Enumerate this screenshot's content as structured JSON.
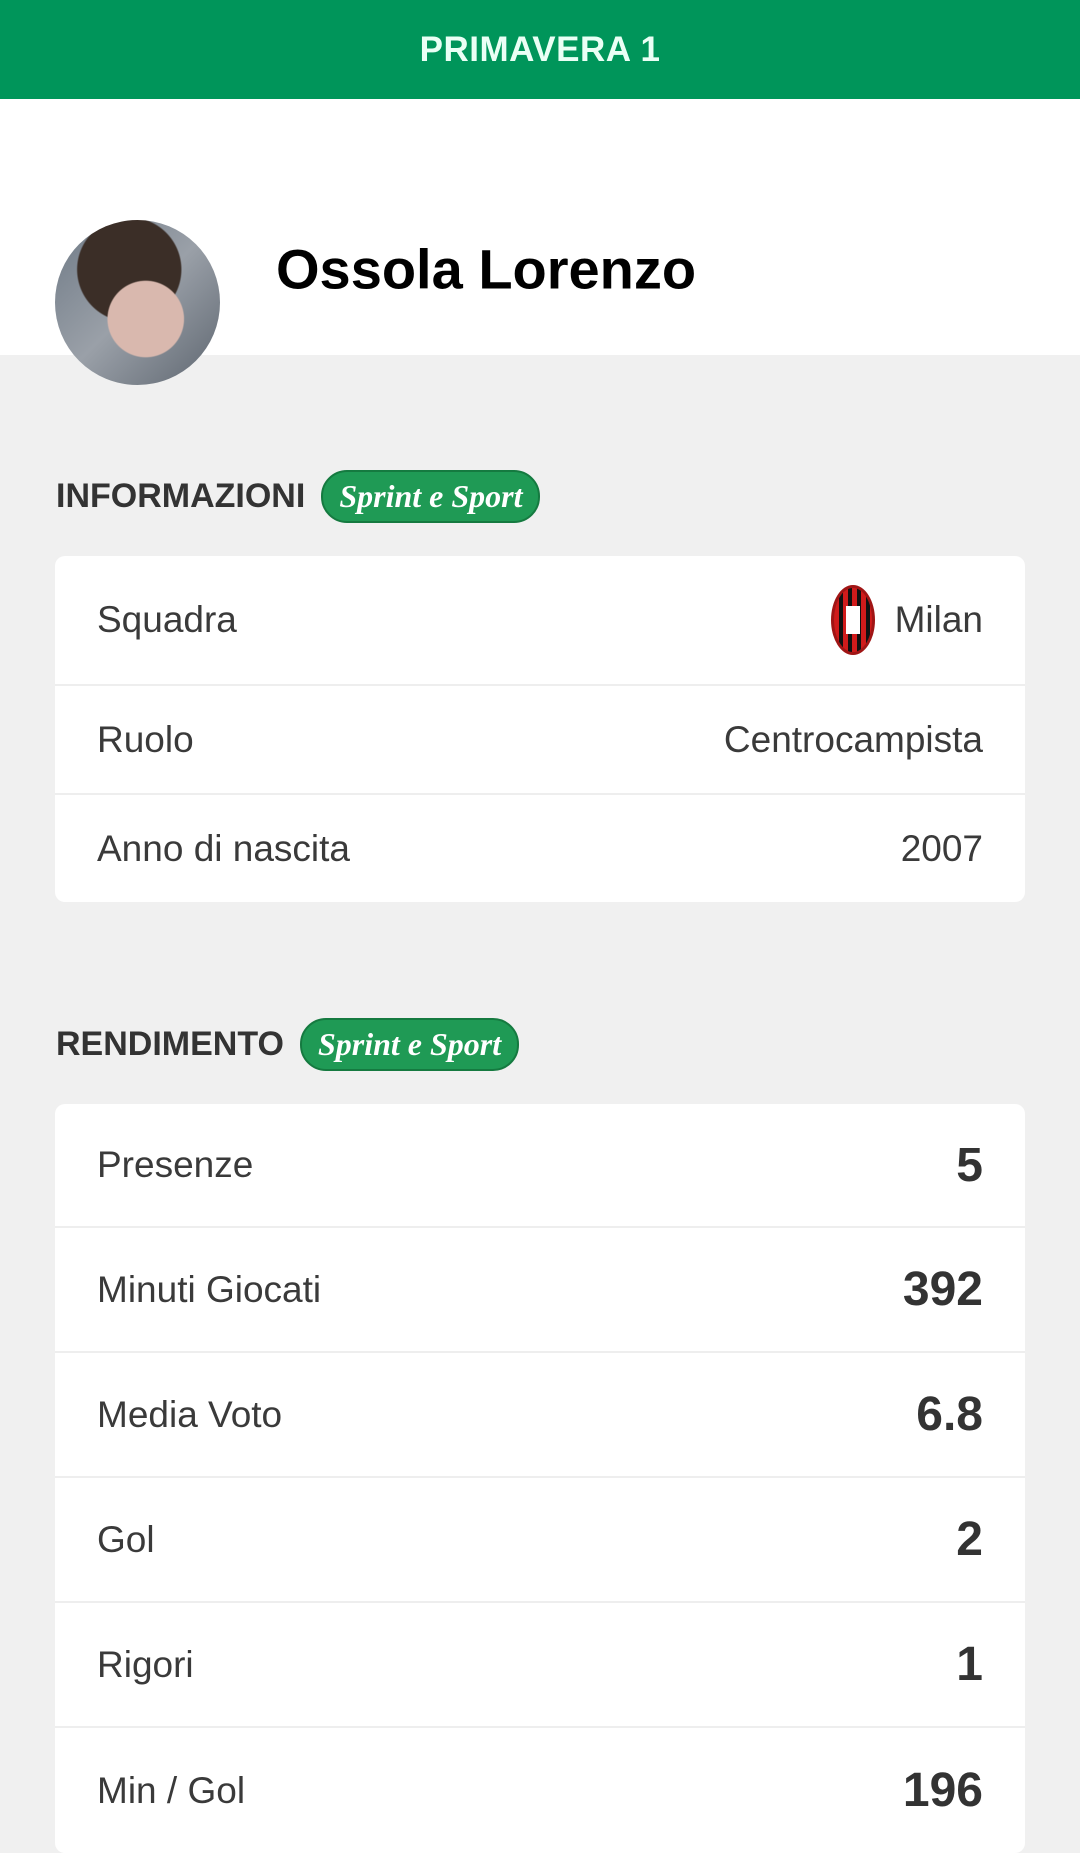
{
  "header": {
    "title": "PRIMAVERA 1"
  },
  "player": {
    "name": "Ossola Lorenzo"
  },
  "info": {
    "title": "INFORMAZIONI",
    "badge": "Sprint e Sport",
    "rows": [
      {
        "label": "Squadra",
        "value": "Milan",
        "icon": "ac-milan-crest"
      },
      {
        "label": "Ruolo",
        "value": "Centrocampista"
      },
      {
        "label": "Anno di nascita",
        "value": "2007"
      }
    ]
  },
  "stats": {
    "title": "RENDIMENTO",
    "badge": "Sprint e Sport",
    "rows": [
      {
        "label": "Presenze",
        "value": "5"
      },
      {
        "label": "Minuti Giocati",
        "value": "392"
      },
      {
        "label": "Media Voto",
        "value": "6.8"
      },
      {
        "label": "Gol",
        "value": "2"
      },
      {
        "label": "Rigori",
        "value": "1"
      },
      {
        "label": "Min / Gol",
        "value": "196"
      }
    ]
  },
  "colors": {
    "brand": "#00955a",
    "background": "#f0f0f0"
  }
}
